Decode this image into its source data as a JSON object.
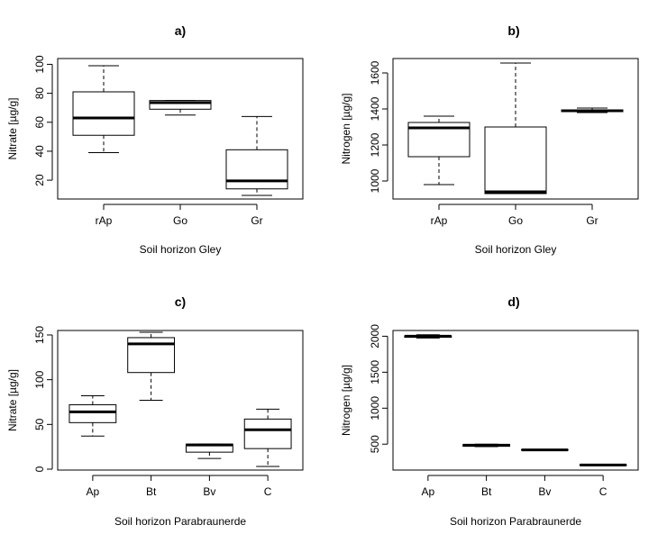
{
  "chart_data": [
    {
      "type": "boxplot",
      "title": "a)",
      "xlabel": "Soil horizon Gley",
      "ylabel": "Nitrate [µg/g]",
      "categories": [
        "rAp",
        "Go",
        "Gr"
      ],
      "ylim": [
        7,
        104
      ],
      "yticks": [
        20,
        40,
        60,
        80,
        100
      ],
      "boxes": [
        {
          "min": 39,
          "q1": 51,
          "median": 63,
          "q3": 81,
          "max": 99
        },
        {
          "min": 65,
          "q1": 69,
          "median": 73.5,
          "q3": 75,
          "max": 75
        },
        {
          "min": 9.5,
          "q1": 14,
          "median": 19.5,
          "q3": 41,
          "max": 64
        }
      ]
    },
    {
      "type": "boxplot",
      "title": "b)",
      "xlabel": "Soil horizon Gley",
      "ylabel": "Nitrogen [µg/g]",
      "categories": [
        "rAp",
        "Go",
        "Gr"
      ],
      "ylim": [
        900,
        1680
      ],
      "yticks": [
        1000,
        1200,
        1400,
        1600
      ],
      "boxes": [
        {
          "min": 980,
          "q1": 1135,
          "median": 1295,
          "q3": 1325,
          "max": 1360
        },
        {
          "min": 930,
          "q1": 930,
          "median": 940,
          "q3": 1300,
          "max": 1655
        },
        {
          "min": 1380,
          "q1": 1385,
          "median": 1390,
          "q3": 1395,
          "max": 1405
        }
      ]
    },
    {
      "type": "boxplot",
      "title": "c)",
      "xlabel": "Soil horizon Parabraunerde",
      "ylabel": "Nitrate [µg/g]",
      "categories": [
        "Ap",
        "Bt",
        "Bv",
        "C"
      ],
      "ylim": [
        -1,
        155
      ],
      "yticks": [
        0,
        50,
        100,
        150
      ],
      "boxes": [
        {
          "min": 37,
          "q1": 52,
          "median": 64,
          "q3": 72,
          "max": 82
        },
        {
          "min": 77,
          "q1": 108,
          "median": 140,
          "q3": 147,
          "max": 153
        },
        {
          "min": 12,
          "q1": 19,
          "median": 27,
          "q3": 28,
          "max": 28
        },
        {
          "min": 3,
          "q1": 23,
          "median": 44,
          "q3": 56,
          "max": 67
        }
      ]
    },
    {
      "type": "boxplot",
      "title": "d)",
      "xlabel": "Soil horizon Parabraunerde",
      "ylabel": "Nitrogen [µg/g]",
      "categories": [
        "Ap",
        "Bt",
        "Bv",
        "C"
      ],
      "ylim": [
        140,
        2080
      ],
      "yticks": [
        500,
        1000,
        1500,
        2000
      ],
      "boxes": [
        {
          "min": 1975,
          "q1": 1985,
          "median": 2000,
          "q3": 2005,
          "max": 2020
        },
        {
          "min": 465,
          "q1": 470,
          "median": 485,
          "q3": 495,
          "max": 500
        },
        {
          "min": 420,
          "q1": 420,
          "median": 420,
          "q3": 420,
          "max": 420
        },
        {
          "min": 210,
          "q1": 210,
          "median": 210,
          "q3": 210,
          "max": 210
        }
      ]
    }
  ]
}
